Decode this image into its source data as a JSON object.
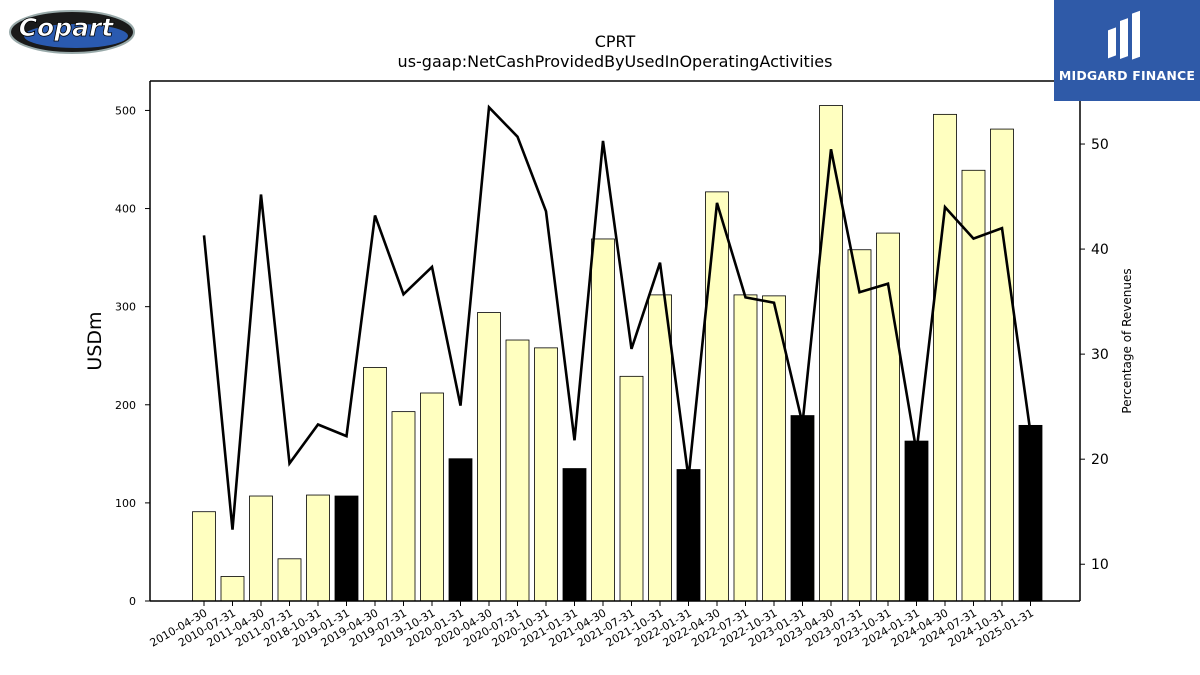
{
  "header": {
    "title": "CPRT",
    "subtitle": "us-gaap:NetCashProvidedByUsedInOperatingActivities"
  },
  "logos": {
    "left_text": "Copart",
    "right_text": "MIDGARD FINANCE"
  },
  "colors": {
    "bar_normal": "#ffffc0",
    "bar_highlight": "#000000",
    "line": "#000000",
    "brand_blue": "#2f5aa8"
  },
  "chart_data": {
    "type": "bar",
    "title": "CPRT",
    "subtitle": "us-gaap:NetCashProvidedByUsedInOperatingActivities",
    "xlabel": "",
    "ylabel": "USDm",
    "y2label": "Percentage of Revenues",
    "ylim": [
      0,
      530
    ],
    "y2lim": [
      6.5,
      56
    ],
    "yticks": [
      0,
      100,
      200,
      300,
      400,
      500
    ],
    "y2ticks": [
      10,
      20,
      30,
      40,
      50
    ],
    "grid": false,
    "categories": [
      "2010-04-30",
      "2010-07-31",
      "2011-04-30",
      "2011-07-31",
      "2018-10-31",
      "2019-01-31",
      "2019-04-30",
      "2019-07-31",
      "2019-10-31",
      "2020-01-31",
      "2020-04-30",
      "2020-07-31",
      "2020-10-31",
      "2021-01-31",
      "2021-04-30",
      "2021-07-31",
      "2021-10-31",
      "2022-01-31",
      "2022-04-30",
      "2022-07-31",
      "2022-10-31",
      "2023-01-31",
      "2023-04-30",
      "2023-07-31",
      "2023-10-31",
      "2024-01-31",
      "2024-04-30",
      "2024-07-31",
      "2024-10-31",
      "2025-01-31"
    ],
    "series": [
      {
        "kind": "bar",
        "axis": "left",
        "values": [
          91,
          25,
          107,
          43,
          108,
          107,
          238,
          193,
          212,
          145,
          294,
          266,
          258,
          135,
          369,
          229,
          312,
          134,
          417,
          312,
          311,
          189,
          505,
          358,
          375,
          163,
          496,
          439,
          481,
          179
        ],
        "highlight": [
          false,
          false,
          false,
          false,
          false,
          true,
          false,
          false,
          false,
          true,
          false,
          false,
          false,
          true,
          false,
          false,
          false,
          true,
          false,
          false,
          false,
          true,
          false,
          false,
          false,
          true,
          false,
          false,
          false,
          true
        ]
      },
      {
        "kind": "line",
        "axis": "right",
        "values": [
          41.3,
          13.3,
          45.2,
          19.6,
          23.3,
          22.2,
          43.2,
          35.7,
          38.3,
          25.1,
          53.5,
          50.7,
          43.6,
          21.8,
          50.3,
          30.5,
          38.7,
          18.2,
          44.4,
          35.4,
          34.9,
          23.4,
          49.5,
          35.9,
          36.7,
          20.7,
          44.0,
          41.0,
          42.0,
          22.5
        ]
      }
    ]
  }
}
